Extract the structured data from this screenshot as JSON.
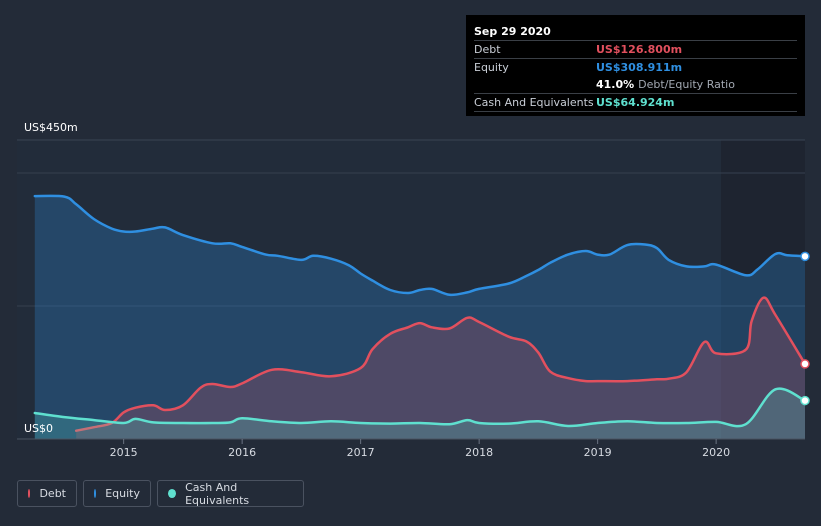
{
  "tooltip": {
    "date": "Sep 29 2020",
    "rows": [
      {
        "label": "Debt",
        "value": "US$126.800m",
        "color": "#e2505e"
      },
      {
        "label": "Equity",
        "value": "US$308.911m",
        "color": "#2f8fe1"
      },
      {
        "label": "",
        "value": "41.0%",
        "extra": "Debt/Equity Ratio",
        "color": "#ffffff"
      },
      {
        "label": "Cash And Equivalents",
        "value": "US$64.924m",
        "color": "#5fe0cf"
      }
    ]
  },
  "legend": [
    {
      "label": "Debt",
      "color": "#e2505e"
    },
    {
      "label": "Equity",
      "color": "#2f8fe1"
    },
    {
      "label": "Cash And Equivalents",
      "color": "#5fe0cf"
    }
  ],
  "chart_data": {
    "type": "area",
    "title": "",
    "xlabel": "",
    "ylabel": "",
    "y_top_label": "US$450m",
    "y_bottom_label": "US$0",
    "xlim": [
      2014.1,
      2020.75
    ],
    "ylim": [
      0,
      450
    ],
    "x_ticks": [
      2015,
      2016,
      2017,
      2018,
      2019,
      2020
    ],
    "x_tick_labels": [
      "2015",
      "2016",
      "2017",
      "2018",
      "2019",
      "2020"
    ],
    "series": [
      {
        "name": "Equity",
        "color": "#2f8fe1",
        "x": [
          2014.25,
          2014.5,
          2014.6,
          2014.75,
          2014.9,
          2015.0,
          2015.1,
          2015.25,
          2015.35,
          2015.5,
          2015.75,
          2015.9,
          2016.0,
          2016.2,
          2016.3,
          2016.5,
          2016.6,
          2016.75,
          2016.9,
          2017.0,
          2017.1,
          2017.25,
          2017.4,
          2017.5,
          2017.6,
          2017.75,
          2017.9,
          2018.0,
          2018.25,
          2018.4,
          2018.5,
          2018.6,
          2018.75,
          2018.9,
          2019.0,
          2019.1,
          2019.25,
          2019.4,
          2019.5,
          2019.6,
          2019.75,
          2019.9,
          2020.0,
          2020.25,
          2020.35,
          2020.5,
          2020.6,
          2020.75
        ],
        "values": [
          411,
          410,
          397,
          372,
          356,
          351,
          351,
          356,
          358,
          345,
          331,
          331,
          325,
          312,
          310,
          303,
          310,
          305,
          294,
          280,
          268,
          252,
          247,
          252,
          254,
          244,
          248,
          254,
          263,
          276,
          286,
          298,
          312,
          318,
          312,
          312,
          328,
          329,
          323,
          303,
          292,
          292,
          295,
          277,
          287,
          313,
          311,
          309
        ]
      },
      {
        "name": "Debt",
        "color": "#e2505e",
        "x": [
          2014.6,
          2014.75,
          2014.9,
          2015.0,
          2015.1,
          2015.25,
          2015.35,
          2015.5,
          2015.65,
          2015.75,
          2015.9,
          2016.0,
          2016.25,
          2016.5,
          2016.75,
          2017.0,
          2017.1,
          2017.25,
          2017.4,
          2017.5,
          2017.6,
          2017.75,
          2017.9,
          2018.0,
          2018.25,
          2018.4,
          2018.5,
          2018.6,
          2018.75,
          2018.9,
          2019.0,
          2019.25,
          2019.5,
          2019.6,
          2019.75,
          2019.9,
          2020.0,
          2020.25,
          2020.3,
          2020.4,
          2020.5,
          2020.75
        ],
        "values": [
          14,
          20,
          27,
          45,
          53,
          57,
          49,
          57,
          87,
          93,
          88,
          94,
          117,
          113,
          106,
          120,
          152,
          178,
          189,
          196,
          189,
          187,
          205,
          198,
          173,
          165,
          146,
          114,
          103,
          98,
          98,
          98,
          101,
          102,
          113,
          164,
          145,
          151,
          200,
          239,
          210,
          127
        ]
      },
      {
        "name": "Cash And Equivalents",
        "color": "#5fe0cf",
        "x": [
          2014.25,
          2014.5,
          2014.75,
          2015.0,
          2015.1,
          2015.25,
          2015.5,
          2015.75,
          2015.9,
          2016.0,
          2016.25,
          2016.5,
          2016.75,
          2017.0,
          2017.25,
          2017.5,
          2017.75,
          2017.9,
          2018.0,
          2018.25,
          2018.5,
          2018.75,
          2019.0,
          2019.25,
          2019.5,
          2019.75,
          2020.0,
          2020.25,
          2020.5,
          2020.75
        ],
        "values": [
          44,
          37,
          32,
          27,
          34,
          28,
          27,
          27,
          28,
          35,
          30,
          27,
          30,
          27,
          26,
          27,
          25,
          32,
          27,
          26,
          30,
          22,
          27,
          30,
          27,
          27,
          29,
          25,
          84,
          65
        ]
      }
    ]
  }
}
